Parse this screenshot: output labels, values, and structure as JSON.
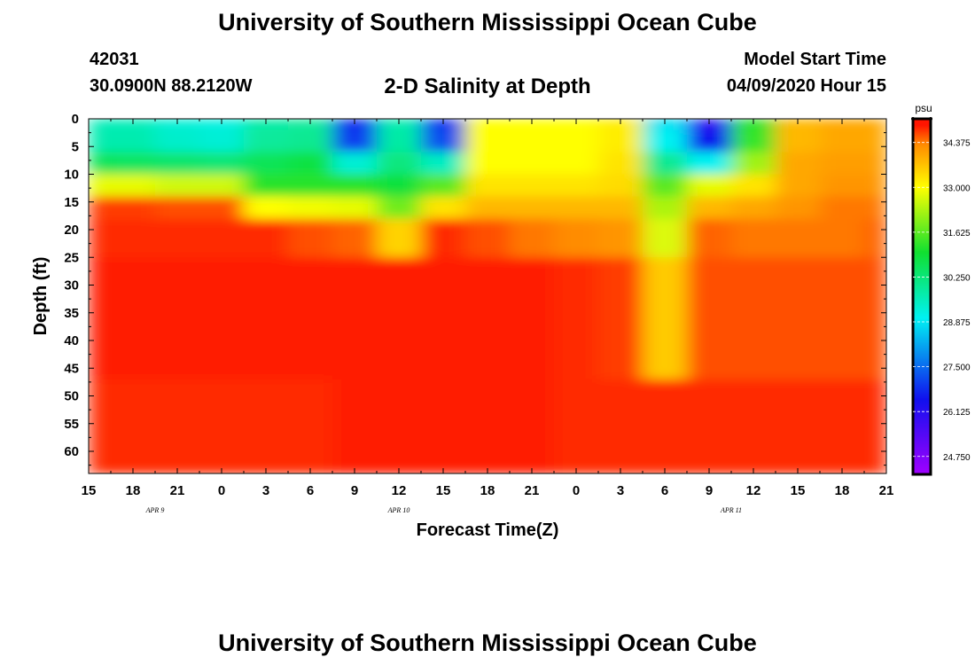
{
  "header": {
    "title": "University of Southern Mississippi Ocean Cube",
    "station_id": "42031",
    "coords": "30.0900N 88.2120W",
    "plot_title": "2-D Salinity at Depth",
    "model_label": "Model Start Time",
    "model_time": "04/09/2020 Hour 15"
  },
  "footer": {
    "title": "University of Southern Mississippi Ocean Cube"
  },
  "colors": {
    "low": "#a000ff",
    "blue": "#1010ee",
    "cyan": "#00f2f2",
    "green": "#10e030",
    "yellow": "#ffff00",
    "orange": "#ff8c00",
    "red": "#ff1500"
  },
  "chart_data": {
    "type": "heatmap",
    "xlabel": "Forecast Time(Z)",
    "ylabel": "Depth (ft)",
    "x_tick_labels": [
      "15",
      "18",
      "21",
      "0",
      "3",
      "6",
      "9",
      "12",
      "15",
      "18",
      "21",
      "0",
      "3",
      "6",
      "9",
      "12",
      "15",
      "18",
      "21"
    ],
    "date_labels": [
      {
        "label": "APR  9",
        "at_tick": 1.5
      },
      {
        "label": "APR  10",
        "at_tick": 7
      },
      {
        "label": "APR  11",
        "at_tick": 14.5
      }
    ],
    "y_ticks": [
      0,
      5,
      10,
      15,
      20,
      25,
      30,
      35,
      40,
      45,
      50,
      55,
      60
    ],
    "ylim": [
      0,
      64
    ],
    "colorbar": {
      "unit": "psu",
      "ticks": [
        "34.375",
        "33.000",
        "31.625",
        "30.250",
        "28.875",
        "27.500",
        "26.125",
        "24.750"
      ],
      "range": [
        24.2,
        35.1
      ]
    },
    "hours": [
      0,
      3,
      6,
      9,
      12,
      15,
      18,
      21,
      24,
      27,
      30,
      33,
      36,
      39,
      42,
      45,
      48,
      51,
      54
    ],
    "depths_ft": [
      0,
      4,
      8,
      12,
      16,
      20,
      30,
      64
    ],
    "salinity_psu": [
      [
        29.6,
        29.6,
        29.3,
        29.2,
        29.8,
        29.9,
        26.8,
        29.7,
        26.9,
        33.0,
        33.0,
        33.0,
        33.2,
        28.8,
        26.0,
        31.2,
        33.8,
        34.0,
        34.0
      ],
      [
        29.7,
        29.7,
        29.4,
        29.3,
        29.9,
        30.0,
        27.0,
        29.8,
        27.2,
        33.0,
        33.0,
        33.0,
        33.2,
        29.0,
        26.5,
        31.3,
        33.8,
        34.0,
        34.0
      ],
      [
        30.6,
        30.5,
        30.4,
        30.3,
        30.6,
        30.8,
        29.3,
        30.2,
        29.5,
        33.0,
        33.0,
        33.0,
        33.3,
        30.0,
        29.0,
        32.2,
        34.0,
        34.1,
        34.1
      ],
      [
        32.8,
        32.8,
        32.6,
        32.6,
        31.2,
        31.2,
        31.2,
        30.9,
        31.6,
        33.3,
        33.3,
        33.3,
        33.4,
        31.6,
        32.8,
        33.3,
        34.0,
        34.2,
        34.2
      ],
      [
        34.7,
        34.7,
        34.6,
        34.6,
        33.0,
        32.9,
        32.8,
        31.8,
        33.3,
        33.8,
        33.8,
        33.8,
        33.8,
        32.3,
        33.8,
        34.0,
        34.2,
        34.4,
        34.4
      ],
      [
        34.8,
        34.8,
        34.8,
        34.8,
        34.8,
        34.6,
        34.5,
        33.5,
        34.8,
        34.6,
        34.4,
        34.3,
        34.2,
        32.7,
        34.5,
        34.4,
        34.4,
        34.4,
        34.5
      ],
      [
        34.85,
        34.85,
        34.85,
        34.85,
        34.85,
        34.85,
        34.85,
        34.85,
        34.85,
        34.85,
        34.85,
        34.8,
        34.7,
        33.6,
        34.6,
        34.6,
        34.6,
        34.6,
        34.6
      ],
      [
        34.8,
        34.8,
        34.8,
        34.8,
        34.8,
        34.8,
        34.85,
        34.85,
        34.85,
        34.85,
        34.85,
        34.8,
        34.8,
        34.8,
        34.8,
        34.8,
        34.8,
        34.8,
        34.8
      ]
    ]
  }
}
